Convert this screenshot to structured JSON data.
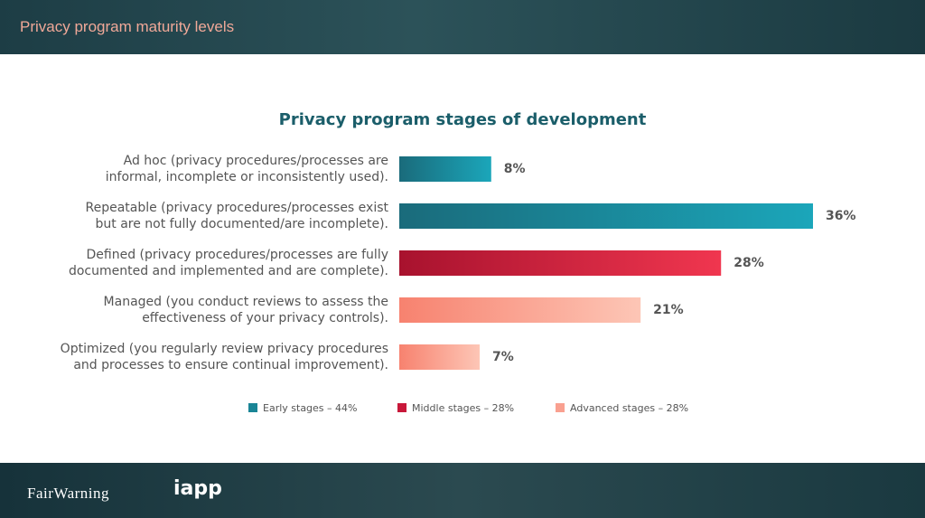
{
  "header": {
    "title": "Privacy program maturity levels"
  },
  "chart_data": {
    "type": "bar",
    "orientation": "horizontal",
    "title": "Privacy program stages of development",
    "categories": [
      [
        "Ad hoc (privacy procedures/processes are",
        "informal, incomplete or inconsistently used)."
      ],
      [
        "Repeatable (privacy procedures/processes exist",
        "but are not fully documented/are incomplete)."
      ],
      [
        "Defined (privacy procedures/processes are fully",
        "documented and implemented and are complete)."
      ],
      [
        "Managed (you conduct reviews to assess the",
        "effectiveness of your privacy controls)."
      ],
      [
        "Optimized (you regularly review privacy procedures",
        "and processes to ensure continual improvement)."
      ]
    ],
    "values": [
      8,
      36,
      28,
      21,
      7
    ],
    "value_labels": [
      "8%",
      "36%",
      "28%",
      "21%",
      "7%"
    ],
    "colors": [
      [
        "#1a6b7b",
        "#1ba6ba"
      ],
      [
        "#1a6b7b",
        "#1ba6ba"
      ],
      [
        "#a8122e",
        "#f0364f"
      ],
      [
        "#f7826f",
        "#fdc6b6"
      ],
      [
        "#f7826f",
        "#fdc6b6"
      ]
    ],
    "legend": [
      {
        "name": "Early stages – 44%",
        "color": "#1a8596"
      },
      {
        "name": "Middle stages – 28%",
        "color": "#c8183a"
      },
      {
        "name": "Advanced stages – 28%",
        "color": "#f9a090"
      }
    ]
  },
  "footer": {
    "logos": [
      "FairWarning",
      "iapp"
    ]
  }
}
